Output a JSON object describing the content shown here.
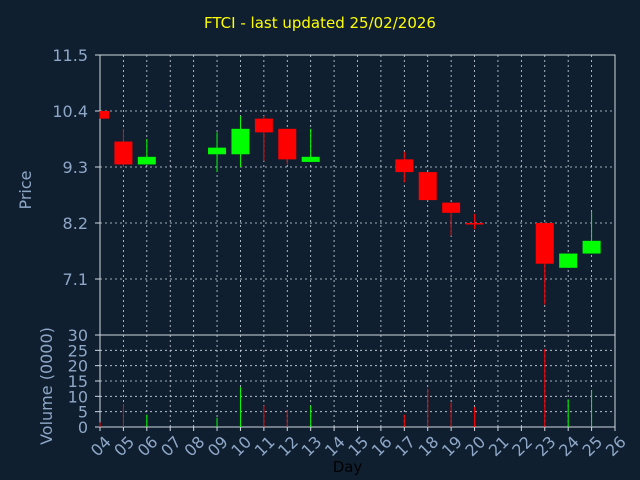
{
  "title": "FTCI - last updated 25/02/2026",
  "chart_data": [
    {
      "type": "candlestick",
      "ylabel": "Price",
      "ylim": [
        6.0,
        11.5
      ],
      "yticks": [
        "11.5",
        "10.4",
        "9.3",
        "8.2",
        "7.1"
      ],
      "ytick_values": [
        11.5,
        10.4,
        9.3,
        8.2,
        7.1
      ],
      "grid": true,
      "candles": [
        {
          "day": 4,
          "open": 10.4,
          "close": 10.25,
          "high": 10.4,
          "low": 10.25
        },
        {
          "day": 5,
          "open": 9.8,
          "close": 9.35,
          "high": 10.05,
          "low": 9.3
        },
        {
          "day": 6,
          "open": 9.35,
          "close": 9.5,
          "high": 9.85,
          "low": 9.35
        },
        {
          "day": 9,
          "open": 9.55,
          "close": 9.68,
          "high": 9.98,
          "low": 9.2
        },
        {
          "day": 10,
          "open": 9.55,
          "close": 10.05,
          "high": 10.3,
          "low": 9.3
        },
        {
          "day": 11,
          "open": 10.25,
          "close": 9.98,
          "high": 10.3,
          "low": 9.42
        },
        {
          "day": 12,
          "open": 10.05,
          "close": 9.45,
          "high": 10.05,
          "low": 9.35
        },
        {
          "day": 13,
          "open": 9.4,
          "close": 9.5,
          "high": 10.05,
          "low": 9.4
        },
        {
          "day": 17,
          "open": 9.45,
          "close": 9.2,
          "high": 9.6,
          "low": 9.0
        },
        {
          "day": 18,
          "open": 9.2,
          "close": 8.65,
          "high": 9.2,
          "low": 8.65
        },
        {
          "day": 19,
          "open": 8.6,
          "close": 8.4,
          "high": 8.6,
          "low": 7.95
        },
        {
          "day": 20,
          "open": 8.2,
          "close": 8.18,
          "high": 8.38,
          "low": 8.08
        },
        {
          "day": 23,
          "open": 8.2,
          "close": 7.4,
          "high": 8.2,
          "low": 6.6
        },
        {
          "day": 24,
          "open": 7.32,
          "close": 7.6,
          "high": 7.6,
          "low": 7.32
        },
        {
          "day": 25,
          "open": 7.6,
          "close": 7.85,
          "high": 8.43,
          "low": 7.6
        }
      ]
    },
    {
      "type": "bar",
      "ylabel": "Volume (0000)",
      "xlabel": "Day",
      "ylim": [
        0,
        30
      ],
      "yticks": [
        "30",
        "25",
        "20",
        "15",
        "10",
        "5",
        "0"
      ],
      "ytick_values": [
        30,
        25,
        20,
        15,
        10,
        5,
        0
      ],
      "categories": [
        "04",
        "05",
        "06",
        "07",
        "08",
        "09",
        "10",
        "11",
        "12",
        "13",
        "14",
        "15",
        "16",
        "17",
        "18",
        "19",
        "20",
        "21",
        "22",
        "23",
        "24",
        "25",
        "26"
      ],
      "category_values": [
        4,
        5,
        6,
        7,
        8,
        9,
        10,
        11,
        12,
        13,
        14,
        15,
        16,
        17,
        18,
        19,
        20,
        21,
        22,
        23,
        24,
        25,
        26
      ],
      "volumes": [
        {
          "day": 4,
          "value": 1.5,
          "color": "#ff0000"
        },
        {
          "day": 5,
          "value": 7.5,
          "color": "#ff0000"
        },
        {
          "day": 6,
          "value": 4.0,
          "color": "#00ff00"
        },
        {
          "day": 9,
          "value": 3.0,
          "color": "#00ff00"
        },
        {
          "day": 10,
          "value": 13.0,
          "color": "#00ff00"
        },
        {
          "day": 11,
          "value": 7.0,
          "color": "#ff0000"
        },
        {
          "day": 12,
          "value": 5.5,
          "color": "#ff0000"
        },
        {
          "day": 13,
          "value": 7.0,
          "color": "#00ff00"
        },
        {
          "day": 17,
          "value": 4.0,
          "color": "#ff0000"
        },
        {
          "day": 18,
          "value": 12.5,
          "color": "#ff0000"
        },
        {
          "day": 19,
          "value": 8.0,
          "color": "#ff0000"
        },
        {
          "day": 20,
          "value": 6.5,
          "color": "#ff0000"
        },
        {
          "day": 23,
          "value": 25.5,
          "color": "#ff0000"
        },
        {
          "day": 24,
          "value": 9.0,
          "color": "#00ff00"
        },
        {
          "day": 25,
          "value": 12.0,
          "color": "#00ff00"
        }
      ]
    }
  ],
  "colors": {
    "background": "#0f1f30",
    "title": "#ffff00",
    "axis_text": "#8fa7c7",
    "grid": "#cfd8e0",
    "up": "#00ff00",
    "down": "#ff0000"
  }
}
